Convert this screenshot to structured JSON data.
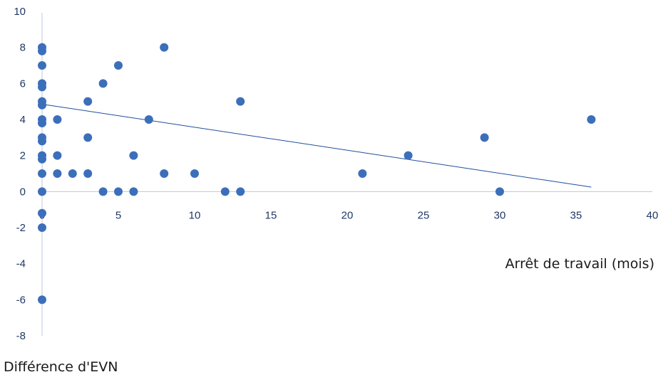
{
  "chart_data": {
    "type": "scatter",
    "title": "",
    "xlabel": "Arrêt de travail (mois)",
    "ylabel": "Différence d'EVN",
    "xlim": [
      0,
      40
    ],
    "ylim": [
      -8,
      10
    ],
    "xticks": [
      0,
      5,
      10,
      15,
      20,
      25,
      30,
      35,
      40
    ],
    "yticks": [
      -8,
      -6,
      -4,
      -2,
      0,
      2,
      4,
      6,
      8,
      10
    ],
    "grid": false,
    "legend": "none",
    "colors": {
      "points": "#3c6fba",
      "trend": "#1f4e9b",
      "axis": "#bcc8dc",
      "tick_text": "#1f3864"
    },
    "series": [
      {
        "points": [
          [
            0,
            8
          ],
          [
            0,
            7.8
          ],
          [
            0,
            7
          ],
          [
            0,
            6
          ],
          [
            0,
            5.8
          ],
          [
            0,
            5
          ],
          [
            0,
            4.8
          ],
          [
            0,
            4
          ],
          [
            0,
            3.8
          ],
          [
            0,
            3
          ],
          [
            0,
            2.8
          ],
          [
            0,
            2
          ],
          [
            0,
            1.8
          ],
          [
            0,
            1
          ],
          [
            0,
            0
          ],
          [
            0,
            -1.2
          ],
          [
            0,
            -2
          ],
          [
            0,
            -6
          ],
          [
            1,
            4
          ],
          [
            1,
            2
          ],
          [
            1,
            1
          ],
          [
            2,
            1
          ],
          [
            3,
            5
          ],
          [
            3,
            3
          ],
          [
            3,
            1
          ],
          [
            4,
            6
          ],
          [
            4,
            0
          ],
          [
            5,
            7
          ],
          [
            5,
            0
          ],
          [
            6,
            2
          ],
          [
            6,
            0
          ],
          [
            7,
            4
          ],
          [
            8,
            8
          ],
          [
            8,
            1
          ],
          [
            10,
            1
          ],
          [
            12,
            0
          ],
          [
            13,
            5
          ],
          [
            13,
            0
          ],
          [
            21,
            1
          ],
          [
            24,
            2
          ],
          [
            29,
            3
          ],
          [
            30,
            0
          ],
          [
            36,
            4
          ]
        ]
      }
    ],
    "trendline": {
      "x": [
        0,
        36
      ],
      "y": [
        4.85,
        0.25
      ]
    }
  }
}
